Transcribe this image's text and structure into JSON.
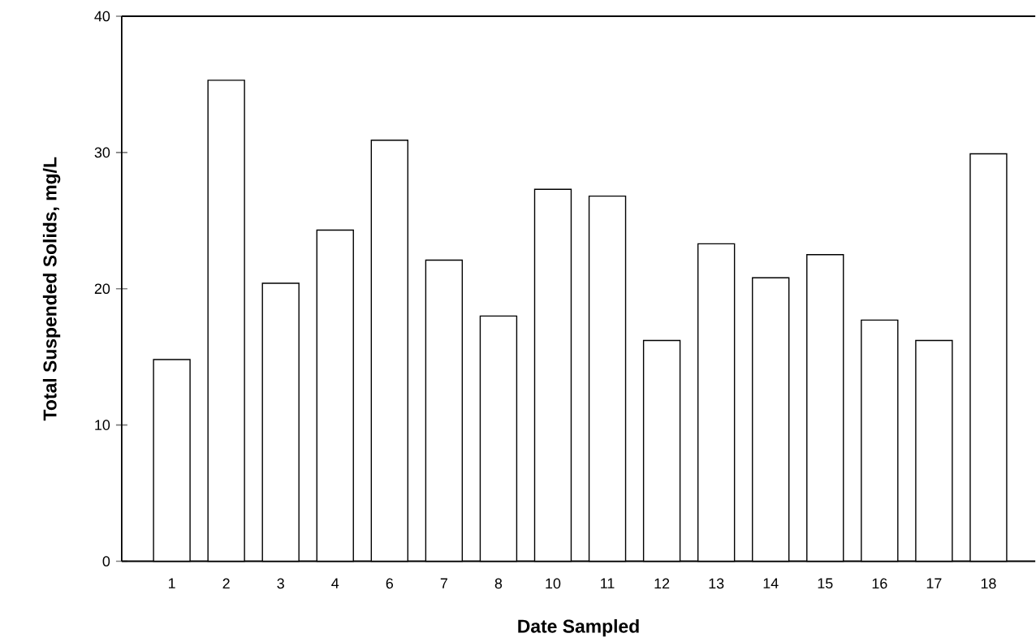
{
  "chart_data": {
    "type": "bar",
    "xlabel": "Date Sampled",
    "ylabel": "Total Suspended Solids, mg/L",
    "categories": [
      "1",
      "2",
      "3",
      "4",
      "6",
      "7",
      "8",
      "10",
      "11",
      "12",
      "13",
      "14",
      "15",
      "16",
      "17",
      "18"
    ],
    "values": [
      14.8,
      35.3,
      20.4,
      24.3,
      30.9,
      22.1,
      18.0,
      27.3,
      26.8,
      16.2,
      23.3,
      20.8,
      22.5,
      17.7,
      16.2,
      29.9
    ],
    "color": "#000000",
    "ylim": [
      0,
      40
    ],
    "yticks": [
      0,
      10,
      20,
      30,
      40
    ]
  }
}
